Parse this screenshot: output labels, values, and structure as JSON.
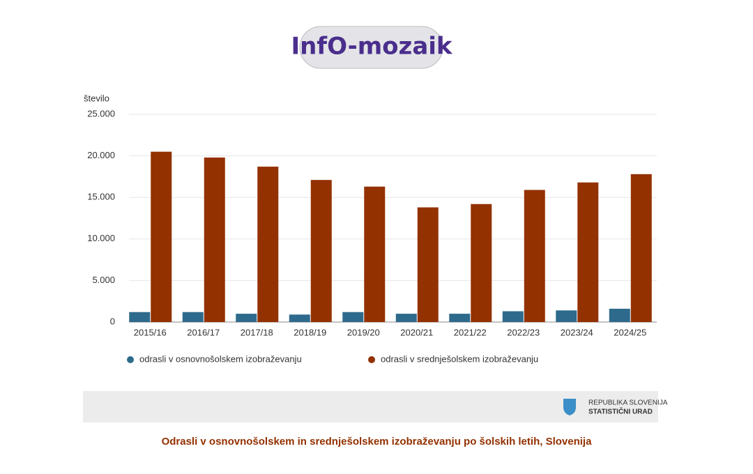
{
  "logo": "InfO-mozaik",
  "chart_data": {
    "type": "bar",
    "y_axis_label": "število",
    "categories": [
      "2015/16",
      "2016/17",
      "2017/18",
      "2018/19",
      "2019/20",
      "2020/21",
      "2021/22",
      "2022/23",
      "2023/24",
      "2024/25"
    ],
    "series": [
      {
        "name": "odrasli v osnovnošolskem izobraževanju",
        "color": "#2e6a8c",
        "values": [
          1200,
          1200,
          1000,
          900,
          1200,
          1000,
          1000,
          1300,
          1400,
          1600
        ]
      },
      {
        "name": "odrasli v srednješolskem izobraževanju",
        "color": "#933100",
        "values": [
          20500,
          19800,
          18700,
          17100,
          16300,
          13800,
          14200,
          15900,
          16800,
          17800
        ]
      }
    ],
    "ylim": [
      0,
      25000
    ],
    "yticks": [
      0,
      {
        "value": 5000,
        "label": "5.000"
      },
      {
        "value": 10000,
        "label": "10.000"
      },
      {
        "value": 15000,
        "label": "15.000"
      },
      {
        "value": 20000,
        "label": "20.000"
      },
      {
        "value": 25000,
        "label": "25.000"
      }
    ],
    "grid": true,
    "legend": "bottom"
  },
  "footer": {
    "line1": "REPUBLIKA SLOVENIJA",
    "line2": "STATISTIČNI URAD"
  },
  "caption": "Odrasli v osnovnošolskem in srednješolskem izobraževanju po šolskih letih, Slovenija"
}
